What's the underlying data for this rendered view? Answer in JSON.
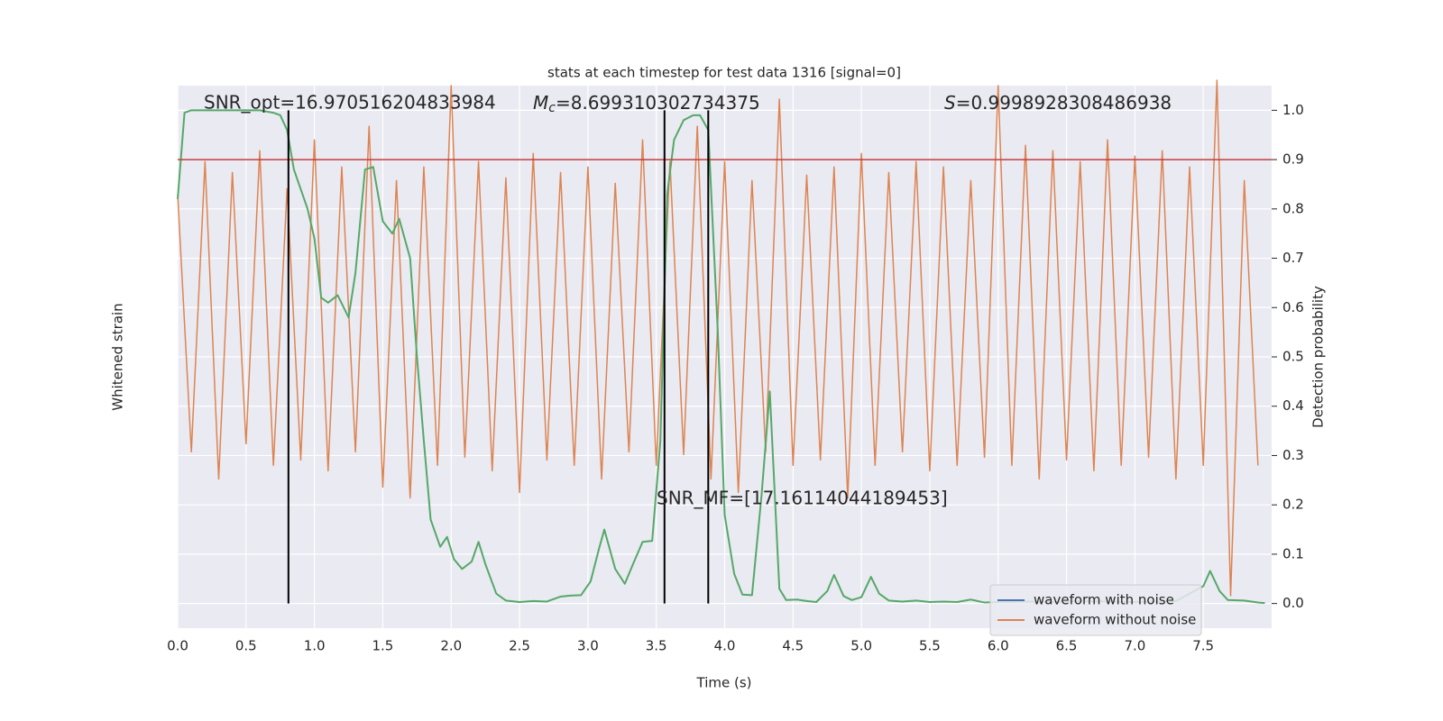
{
  "chart_data": {
    "type": "line",
    "title": "stats at each timestep for test data 1316 [signal=0]",
    "x_label": "Time (s)",
    "y_label": "Whitened strain",
    "y2_label": "Detection probability",
    "xlim": [
      0,
      8
    ],
    "xticks": [
      {
        "value": 0,
        "label": "0.0"
      },
      0.5,
      {
        "value": 1,
        "label": "1.0"
      },
      1.5,
      {
        "value": 2,
        "label": "2.0"
      },
      2.5,
      {
        "value": 3,
        "label": "3.0"
      },
      3.5,
      {
        "value": 4,
        "label": "4.0"
      },
      4.5,
      {
        "value": 5,
        "label": "5.0"
      },
      5.5,
      {
        "value": 6,
        "label": "6.0"
      },
      6.5,
      {
        "value": 7,
        "label": "7.0"
      },
      7.5
    ],
    "ylim": [
      -1.1,
      0.9
    ],
    "y2lim": [
      -0.05,
      1.05
    ],
    "y2ticks": [
      {
        "value": 0,
        "label": "0.0"
      },
      0.1,
      0.2,
      0.3,
      0.4,
      0.5,
      0.6,
      0.7,
      0.8,
      0.9,
      {
        "value": 1,
        "label": "1.0"
      }
    ],
    "grid": true,
    "legend": "lower right",
    "series": [
      {
        "name": "waveform with noise",
        "color": "#4c72b0"
      },
      {
        "name": "waveform without noise",
        "color": "#dd8452",
        "x": [
          0.0,
          0.1,
          0.2,
          0.3,
          0.4,
          0.5,
          0.6,
          0.7,
          0.8,
          0.9,
          1.0,
          1.1,
          1.2,
          1.3,
          1.4,
          1.5,
          1.6,
          1.7,
          1.8,
          1.9,
          2.0,
          2.1,
          2.2,
          2.3,
          2.4,
          2.5,
          2.6,
          2.7,
          2.8,
          2.9,
          3.0,
          3.1,
          3.2,
          3.3,
          3.4,
          3.5,
          3.6,
          3.7,
          3.8,
          3.9,
          4.0,
          4.1,
          4.2,
          4.3,
          4.4,
          4.5,
          4.6,
          4.7,
          4.8,
          4.9,
          5.0,
          5.1,
          5.2,
          5.3,
          5.4,
          5.5,
          5.6,
          5.7,
          5.8,
          5.9,
          6.0,
          6.1,
          6.2,
          6.3,
          6.4,
          6.5,
          6.6,
          6.7,
          6.8,
          6.9,
          7.0,
          7.1,
          7.2,
          7.3,
          7.4,
          7.5,
          7.6,
          7.7,
          7.8,
          7.9
        ],
        "values": [
          0.5,
          -0.45,
          0.62,
          -0.55,
          0.58,
          -0.42,
          0.66,
          -0.5,
          0.52,
          -0.48,
          0.7,
          -0.52,
          0.6,
          -0.45,
          0.75,
          -0.58,
          0.55,
          -0.62,
          0.6,
          -0.5,
          0.9,
          -0.47,
          0.62,
          -0.52,
          0.56,
          -0.6,
          0.65,
          -0.48,
          0.58,
          -0.5,
          0.6,
          -0.55,
          0.54,
          -0.45,
          0.7,
          -0.5,
          0.62,
          -0.46,
          0.75,
          -0.55,
          0.62,
          -0.6,
          0.55,
          -0.45,
          0.85,
          -0.5,
          0.57,
          -0.48,
          0.6,
          -0.62,
          0.65,
          -0.5,
          0.58,
          -0.45,
          0.62,
          -0.52,
          0.6,
          -0.5,
          0.55,
          -0.47,
          0.9,
          -0.5,
          0.68,
          -0.55,
          0.66,
          -0.48,
          0.62,
          -0.52,
          0.7,
          -0.5,
          0.64,
          -0.47,
          0.66,
          -0.55,
          0.6,
          -0.5,
          0.92,
          -0.98,
          0.55,
          -0.5
        ]
      },
      {
        "color": "#55a868",
        "axis": "y2",
        "x": [
          0.0,
          0.05,
          0.1,
          0.2,
          0.3,
          0.4,
          0.5,
          0.6,
          0.7,
          0.75,
          0.8,
          0.85,
          0.9,
          0.95,
          1.0,
          1.05,
          1.1,
          1.17,
          1.25,
          1.3,
          1.37,
          1.43,
          1.5,
          1.57,
          1.62,
          1.7,
          1.75,
          1.8,
          1.85,
          1.92,
          1.97,
          2.02,
          2.08,
          2.15,
          2.2,
          2.25,
          2.33,
          2.4,
          2.5,
          2.6,
          2.7,
          2.8,
          2.87,
          2.95,
          3.02,
          3.08,
          3.12,
          3.2,
          3.27,
          3.33,
          3.4,
          3.47,
          3.53,
          3.58,
          3.63,
          3.7,
          3.77,
          3.82,
          3.88,
          3.95,
          4.0,
          4.07,
          4.13,
          4.2,
          4.27,
          4.33,
          4.4,
          4.45,
          4.53,
          4.6,
          4.67,
          4.75,
          4.8,
          4.87,
          4.93,
          5.0,
          5.07,
          5.13,
          5.2,
          5.3,
          5.4,
          5.5,
          5.6,
          5.7,
          5.8,
          5.9,
          6.0,
          6.2,
          6.4,
          6.6,
          6.8,
          7.0,
          7.2,
          7.3,
          7.4,
          7.5,
          7.55,
          7.62,
          7.68,
          7.8,
          7.9,
          7.95
        ],
        "values": [
          0.82,
          0.995,
          1.0,
          1.0,
          1.0,
          1.0,
          1.0,
          1.0,
          0.995,
          0.99,
          0.96,
          0.88,
          0.84,
          0.8,
          0.74,
          0.62,
          0.61,
          0.625,
          0.58,
          0.67,
          0.88,
          0.885,
          0.775,
          0.75,
          0.78,
          0.7,
          0.5,
          0.33,
          0.17,
          0.115,
          0.135,
          0.09,
          0.07,
          0.085,
          0.125,
          0.08,
          0.02,
          0.006,
          0.003,
          0.005,
          0.004,
          0.014,
          0.016,
          0.017,
          0.045,
          0.11,
          0.15,
          0.07,
          0.04,
          0.08,
          0.125,
          0.127,
          0.33,
          0.83,
          0.94,
          0.98,
          0.99,
          0.99,
          0.96,
          0.55,
          0.18,
          0.06,
          0.018,
          0.017,
          0.22,
          0.43,
          0.03,
          0.007,
          0.008,
          0.005,
          0.003,
          0.025,
          0.058,
          0.015,
          0.007,
          0.013,
          0.054,
          0.02,
          0.006,
          0.004,
          0.006,
          0.003,
          0.004,
          0.003,
          0.008,
          0.002,
          0.003,
          0.004,
          0.003,
          0.005,
          0.004,
          0.003,
          0.004,
          0.005,
          0.02,
          0.035,
          0.066,
          0.025,
          0.007,
          0.006,
          0.002,
          0.001
        ]
      }
    ],
    "hline": 0.9,
    "hline_color": "#c03d3e",
    "vlines": [
      0.81,
      3.56,
      3.88
    ],
    "vline_ymin": 0,
    "vline_ymax": 1,
    "vline_color": "#000000",
    "annotations": {
      "snr_opt": "SNR_opt=16.970516204833984",
      "chirp_mass": {
        "symbol": "M",
        "subscript": "c",
        "text": "=8.699310302734375"
      },
      "overlap": {
        "symbol": "S",
        "text": "=0.9998928308486938"
      },
      "snr_mf": "SNR_MF=[17.16114044189453]"
    }
  }
}
